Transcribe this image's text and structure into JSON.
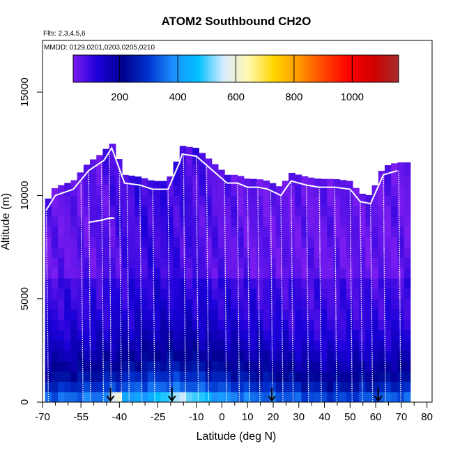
{
  "chart_data": {
    "type": "heatmap",
    "title": "ATOM2 Southbound CH2O",
    "subtitle_flights": "Flts: 2,3,4,5,6",
    "subtitle_dates": "MMDD: 0129,0201,0203,0205,0210",
    "xlabel": "Latitude (deg N)",
    "ylabel": "Altitude (m)",
    "xlim": [
      -70,
      82
    ],
    "ylim": [
      0,
      17500
    ],
    "x_ticks": [
      -70,
      -55,
      -40,
      -25,
      -10,
      0,
      10,
      20,
      30,
      40,
      50,
      60,
      70,
      80
    ],
    "x_minor_ticks": [
      -65,
      -60,
      -50,
      -45,
      -35,
      -30,
      -20,
      -15,
      -5,
      5,
      15,
      25,
      35,
      45,
      55,
      65,
      75
    ],
    "y_ticks": [
      0,
      5000,
      10000,
      15000
    ],
    "colorbar": {
      "range": [
        40,
        1160
      ],
      "ticks": [
        200,
        400,
        600,
        800,
        1000
      ],
      "colors": [
        "#7a1cf0",
        "#1a00d8",
        "#00008f",
        "#0033d0",
        "#1e90ff",
        "#00c0ff",
        "#d8ecff",
        "#fff8b0",
        "#ffd700",
        "#ff9a00",
        "#ff4500",
        "#ff0000",
        "#d00000",
        "#a52a2a"
      ]
    },
    "profiles_x": [
      -68.5,
      -55,
      -52,
      -47,
      -44,
      -40,
      -37,
      -32,
      -27,
      -21,
      -15,
      -10,
      -6,
      1,
      6,
      10,
      14,
      19,
      23,
      27,
      33,
      38,
      44,
      50,
      54,
      58,
      63,
      69
    ],
    "arrows_lat": [
      -43.5,
      -19.5,
      19.5,
      61
    ],
    "series": [
      {
        "name": "upper flight track",
        "x": [
          -68.5,
          -65,
          -58,
          -52,
          -46,
          -43,
          -38,
          -32,
          -27,
          -21,
          -16.5,
          -15.5,
          -10,
          2,
          6,
          10,
          14,
          18,
          23,
          27,
          33,
          38,
          44,
          50,
          54,
          58,
          63,
          68.5
        ],
        "y": [
          9300,
          10000,
          10300,
          11200,
          11700,
          12300,
          10600,
          10500,
          10300,
          10300,
          11600,
          12000,
          11900,
          10600,
          10600,
          10400,
          10400,
          10300,
          10000,
          10700,
          10500,
          10400,
          10400,
          10300,
          9700,
          9600,
          11000,
          11200
        ]
      },
      {
        "name": "lower flight track",
        "x": [
          -52,
          -47,
          -44,
          -42
        ],
        "y": [
          8700,
          8800,
          8900,
          8900
        ]
      }
    ]
  }
}
